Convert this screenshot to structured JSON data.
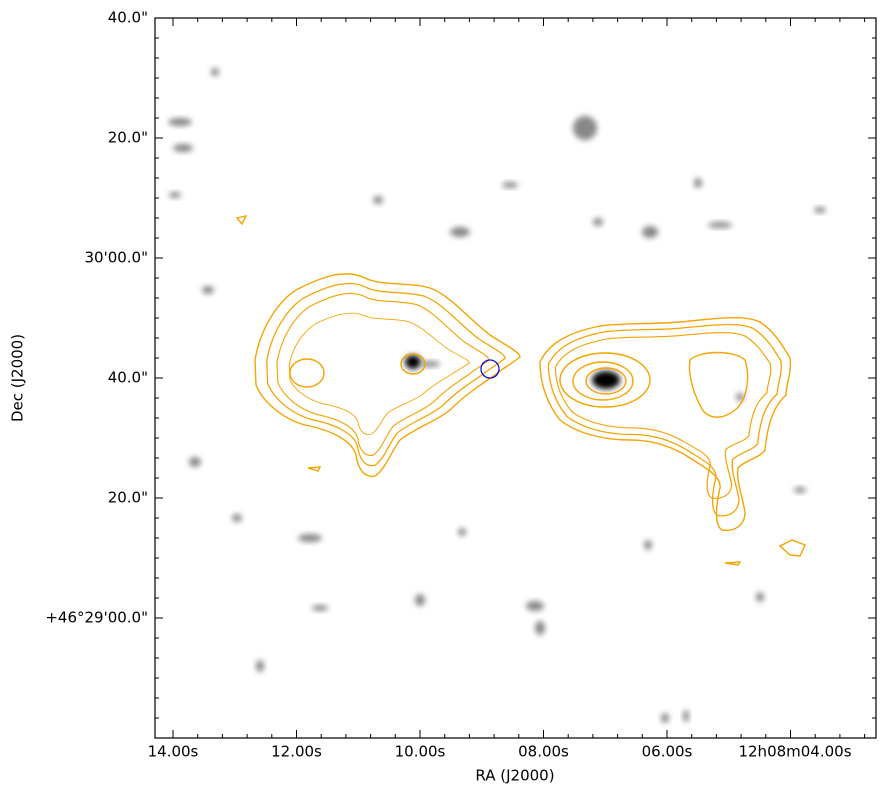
{
  "axes": {
    "x_label": "RA (J2000)",
    "y_label": "Dec (J2000)",
    "x_ticks": [
      "14.00s",
      "12.00s",
      "10.00s",
      "08.00s",
      "06.00s",
      "12h08m04.00s"
    ],
    "y_ticks": [
      "40.0\"",
      "20.0\"",
      "30'00.0\"",
      "40.0\"",
      "20.0\"",
      "+46°29'00.0\""
    ]
  }
}
